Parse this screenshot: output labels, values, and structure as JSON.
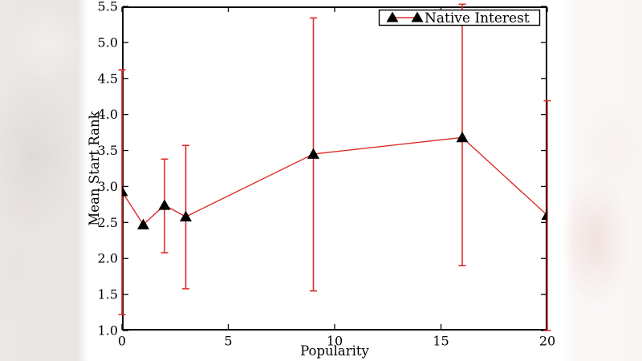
{
  "chart_data": {
    "type": "line",
    "variant": "errorbar",
    "title": "",
    "xlabel": "Popularity",
    "ylabel": "Mean Start Rank",
    "xlim": [
      0,
      20
    ],
    "ylim": [
      1.0,
      5.5
    ],
    "xticks": [
      0,
      5,
      10,
      15,
      20
    ],
    "xtick_labels": [
      "0",
      "5",
      "10",
      "15",
      "20"
    ],
    "yticks": [
      1.0,
      1.5,
      2.0,
      2.5,
      3.0,
      3.5,
      4.0,
      4.5,
      5.0,
      5.5
    ],
    "ytick_labels": [
      "1.0",
      "1.5",
      "2.0",
      "2.5",
      "3.0",
      "3.5",
      "4.0",
      "4.5",
      "5.0",
      "5.5"
    ],
    "grid": false,
    "legend": {
      "label": "Native Interest",
      "position": "upper right"
    },
    "series": [
      {
        "name": "Native Interest",
        "line_color": "#dc2f2a",
        "marker": "triangle-up",
        "marker_color": "#000000",
        "points": [
          {
            "x": 0,
            "y": 2.93,
            "err_lo": 1.22,
            "err_hi": 4.62
          },
          {
            "x": 1,
            "y": 2.47,
            "err_lo": null,
            "err_hi": null
          },
          {
            "x": 2,
            "y": 2.74,
            "err_lo": 2.08,
            "err_hi": 3.38
          },
          {
            "x": 3,
            "y": 2.58,
            "err_lo": 1.58,
            "err_hi": 3.57
          },
          {
            "x": 9,
            "y": 3.45,
            "err_lo": 1.55,
            "err_hi": 5.34
          },
          {
            "x": 16,
            "y": 3.68,
            "err_lo": 1.9,
            "err_hi": 5.53
          },
          {
            "x": 20,
            "y": 2.6,
            "err_lo": 1.0,
            "err_hi": 4.19
          }
        ]
      }
    ],
    "colors": {
      "frame": "#000000",
      "figure_background": "#ffffff",
      "backdrop_left": "#e9e6e4",
      "backdrop_right": "#f9f7f6",
      "backdrop_pink_blob": "#f2e0dd"
    }
  }
}
